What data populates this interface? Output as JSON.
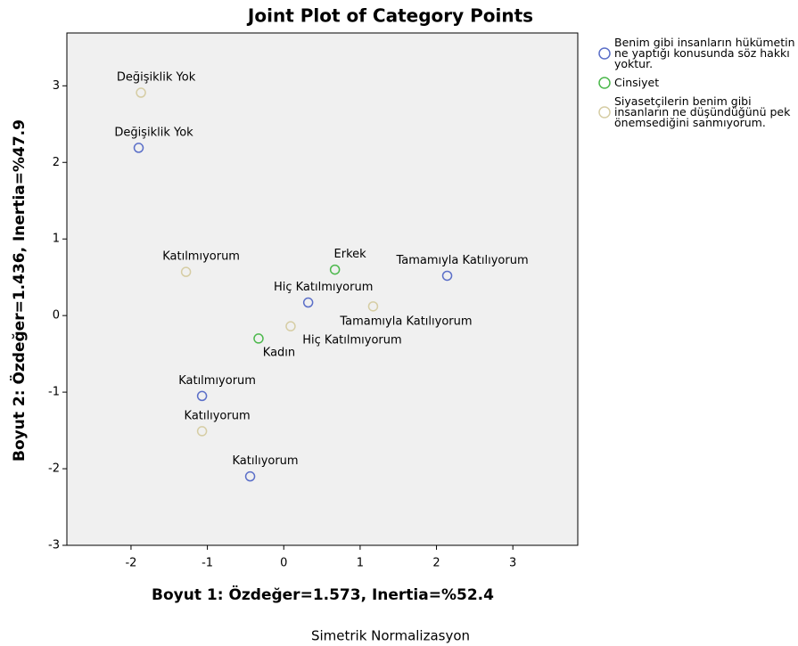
{
  "chart_data": {
    "type": "scatter",
    "title": "Joint Plot of Category Points",
    "subtitle": "Simetrik Normalizasyon",
    "x_label": "Boyut 1: Özdeğer=1.573, Inertia=%52.4",
    "y_label": "Boyut 2: Özdeğer=1.436, Inertia=%47.9",
    "xlim": [
      -2.84,
      3.85
    ],
    "ylim": [
      -3,
      3.69
    ],
    "xticks": [
      -2,
      -1,
      0,
      1,
      2,
      3
    ],
    "yticks": [
      -3,
      -2,
      -1,
      0,
      1,
      2,
      3
    ],
    "legend": "right",
    "series": [
      {
        "name": "Benim gibi insanların hükümetin ne yaptığı konusunda söz hakkı yoktur.",
        "color": "#5b6fc8",
        "x": [
          -1.9,
          2.14,
          0.32,
          -1.07,
          -0.44
        ],
        "values": [
          2.19,
          0.52,
          0.17,
          -1.05,
          -2.1
        ],
        "labels": [
          "Değişiklik Yok",
          "Tamamıyla Katılıyorum",
          "Hiç Katılmıyorum",
          "Katılmıyorum",
          "Katılıyorum"
        ]
      },
      {
        "name": "Cinsiyet",
        "color": "#4cb84c",
        "x": [
          0.67,
          -0.33
        ],
        "values": [
          0.6,
          -0.3
        ],
        "labels": [
          "Erkek",
          "Kadın"
        ]
      },
      {
        "name": "Siyasetçilerin benim gibi insanların ne düşündüğünü pek önemsediğini sanmıyorum.",
        "color": "#d6cda4",
        "x": [
          -1.87,
          -1.28,
          1.17,
          0.09,
          -1.07
        ],
        "values": [
          2.91,
          0.57,
          0.12,
          -0.14,
          -1.51
        ],
        "labels": [
          "Değişiklik Yok",
          "Katılmıyorum",
          "Tamamıyla Katılıyorum",
          "Hiç Katılmıyorum",
          "Katılıyorum"
        ]
      }
    ]
  }
}
